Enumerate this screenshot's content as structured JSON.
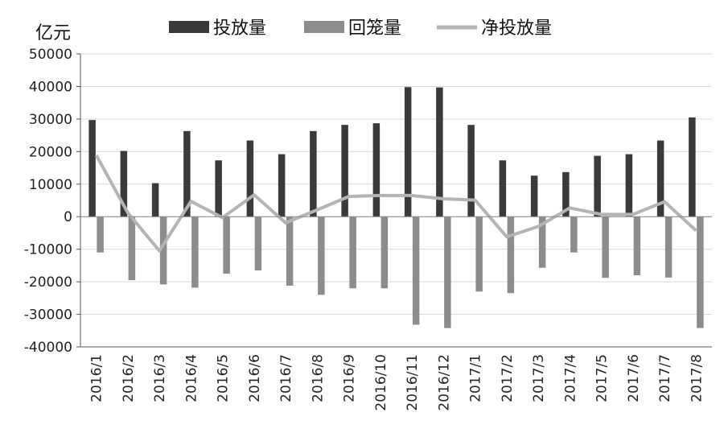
{
  "chart_data": {
    "type": "bar",
    "y_unit": "亿元",
    "categories": [
      "2016/1",
      "2016/2",
      "2016/3",
      "2016/4",
      "2016/5",
      "2016/6",
      "2016/7",
      "2016/8",
      "2016/9",
      "2016/10",
      "2016/11",
      "2016/12",
      "2017/1",
      "2017/2",
      "2017/3",
      "2017/4",
      "2017/5",
      "2017/6",
      "2017/7",
      "2017/8"
    ],
    "ylim": [
      -40000,
      50000
    ],
    "yticks": [
      "50000",
      "40000",
      "30000",
      "20000",
      "10000",
      "0",
      "-10000",
      "-20000",
      "-30000",
      "-40000"
    ],
    "grid": true,
    "legend_position": "top",
    "series": [
      {
        "name": "投放量",
        "kind": "bar",
        "color": "#3a3a3a",
        "values": [
          29700,
          20200,
          10300,
          26300,
          17300,
          23400,
          19200,
          26300,
          28200,
          28700,
          39800,
          39700,
          28200,
          17300,
          12600,
          13700,
          18700,
          19200,
          23400,
          30500
        ]
      },
      {
        "name": "回笼量",
        "kind": "bar",
        "color": "#8c8c8c",
        "values": [
          -11000,
          -19500,
          -20800,
          -21800,
          -17500,
          -16500,
          -21200,
          -24000,
          -22000,
          -22000,
          -33200,
          -34200,
          -23000,
          -23500,
          -15700,
          -11000,
          -18800,
          -18000,
          -18700,
          -34200
        ]
      },
      {
        "name": "净投放量",
        "kind": "line",
        "color": "#b4b4b4",
        "values": [
          18900,
          1200,
          -10500,
          4700,
          -300,
          6700,
          -1900,
          2100,
          6200,
          6500,
          6500,
          5500,
          5100,
          -6200,
          -3000,
          2700,
          700,
          700,
          4600,
          -4300
        ]
      }
    ]
  }
}
